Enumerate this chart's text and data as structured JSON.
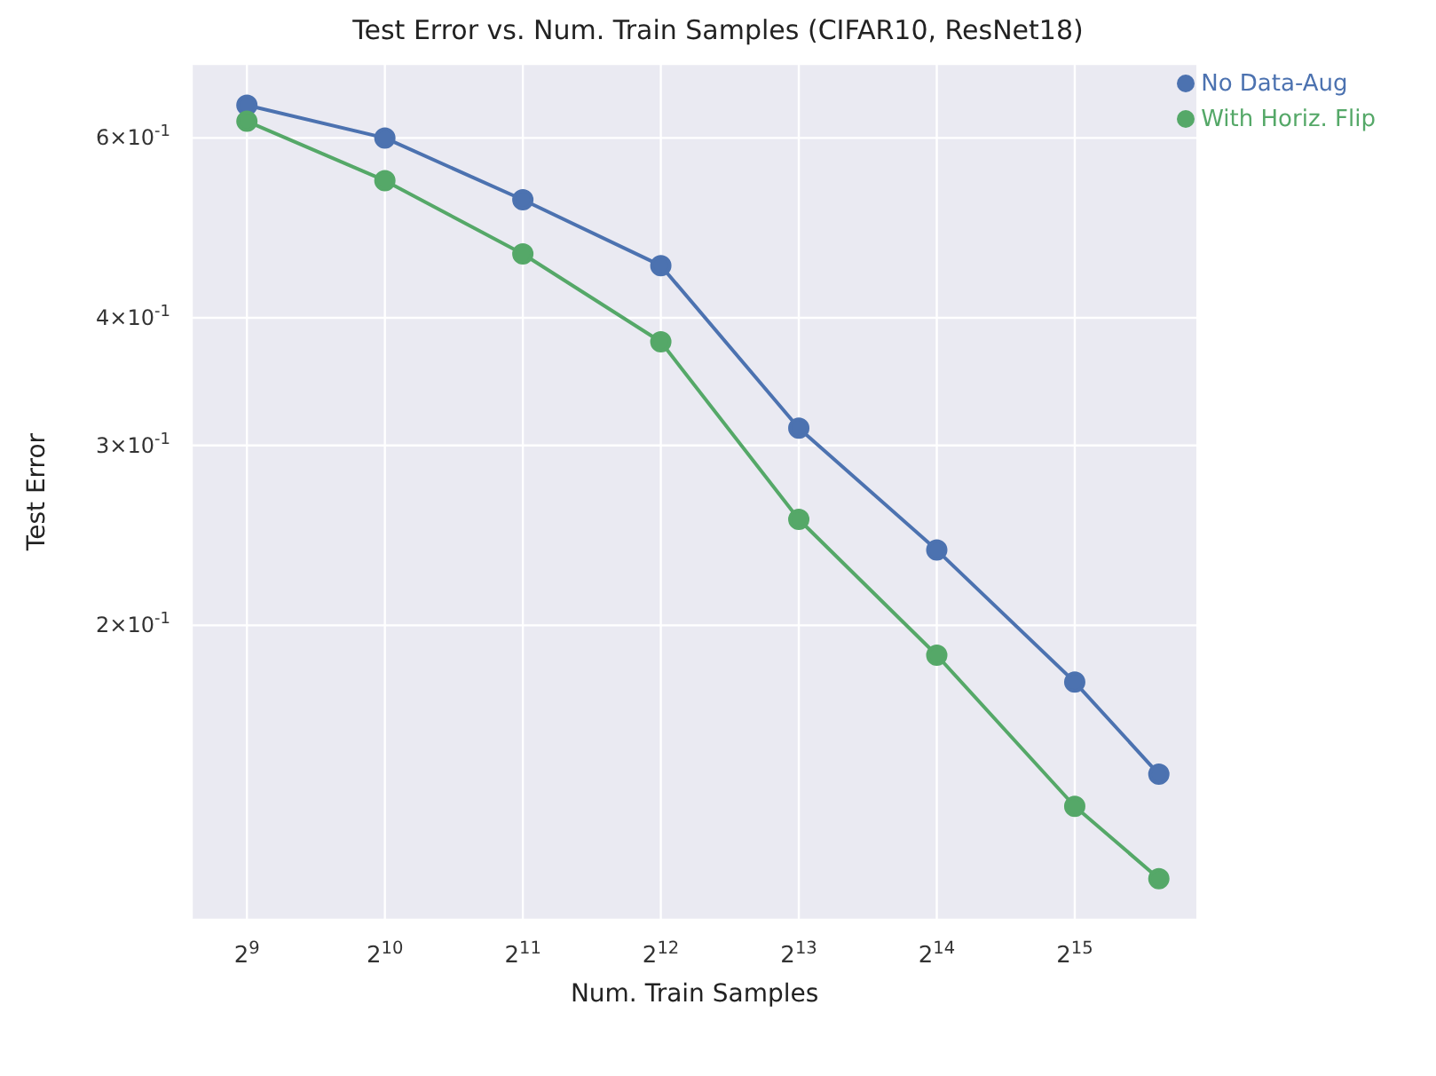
{
  "chart_data": {
    "type": "line",
    "title": "Test Error vs. Num. Train Samples (CIFAR10, ResNet18)",
    "xlabel": "Num. Train Samples",
    "ylabel": "Test Error",
    "x": [
      512,
      1024,
      2048,
      4096,
      8192,
      16384,
      32768,
      50000
    ],
    "series": [
      {
        "name": "No Data-Aug",
        "color": "#4c72b0",
        "values": [
          0.646,
          0.6,
          0.522,
          0.45,
          0.312,
          0.237,
          0.176,
          0.143
        ]
      },
      {
        "name": "With Horiz. Flip",
        "color": "#55a868",
        "values": [
          0.623,
          0.545,
          0.462,
          0.379,
          0.254,
          0.187,
          0.133,
          0.113
        ]
      }
    ],
    "log": "xy",
    "xlim": [
      388,
      60700
    ],
    "ylim": [
      0.103,
      0.709
    ],
    "xticks": [
      {
        "value": 512,
        "label": "2$^{9}$"
      },
      {
        "value": 1024,
        "label": "2$^{10}$"
      },
      {
        "value": 2048,
        "label": "2$^{11}$"
      },
      {
        "value": 4096,
        "label": "2$^{12}$"
      },
      {
        "value": 8192,
        "label": "2$^{13}$"
      },
      {
        "value": 16384,
        "label": "2$^{14}$"
      },
      {
        "value": 32768,
        "label": "2$^{15}$"
      }
    ],
    "yticks": [
      {
        "value": 0.2,
        "label": "2×10$^{-1}$"
      },
      {
        "value": 0.3,
        "label": "3×10$^{-1}$"
      },
      {
        "value": 0.4,
        "label": "4×10$^{-1}$"
      },
      {
        "value": 0.6,
        "label": "6×10$^{-1}$"
      }
    ],
    "grid": true,
    "legend": "top right",
    "marker": "circle",
    "line_style": "solid"
  }
}
